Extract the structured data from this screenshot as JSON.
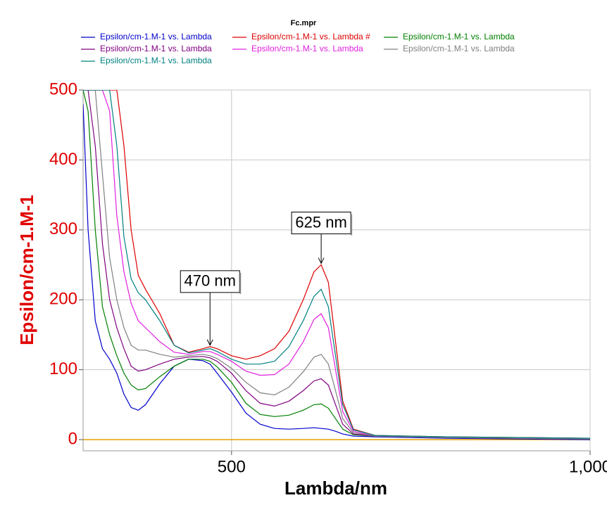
{
  "chart_data": {
    "type": "line",
    "title": "Fc.mpr",
    "x_label": "Lambda/nm",
    "y_label": "Epsilon/cm-1.M-1",
    "xlim": [
      293,
      1000
    ],
    "ylim": [
      -16,
      500
    ],
    "xticks": [
      500,
      {
        "value": 1000,
        "label": "1,000"
      }
    ],
    "yticks": [
      0,
      100,
      200,
      300,
      400,
      500
    ],
    "grid": true,
    "baseline_color": "#e8a000",
    "x": [
      293,
      300,
      310,
      320,
      330,
      340,
      350,
      360,
      370,
      380,
      400,
      420,
      440,
      460,
      470,
      480,
      500,
      520,
      540,
      560,
      580,
      600,
      615,
      625,
      635,
      645,
      655,
      670,
      700,
      750,
      800,
      900,
      1000
    ],
    "series": [
      {
        "name": "Epsilon/cm-1.M-1 vs. Lambda",
        "color": "#0000cc",
        "values": [
          480,
          300,
          170,
          130,
          115,
          95,
          65,
          46,
          42,
          50,
          80,
          105,
          115,
          113,
          108,
          95,
          68,
          38,
          22,
          16,
          15,
          16,
          17,
          16,
          15,
          12,
          8,
          5,
          4,
          3,
          2,
          1,
          0
        ]
      },
      {
        "name": "Epsilon/cm-1.M-1 vs. Lambda #",
        "color": "#dd0000",
        "values": [
          500,
          500,
          500,
          500,
          500,
          500,
          420,
          300,
          235,
          215,
          180,
          135,
          125,
          130,
          133,
          130,
          120,
          115,
          120,
          130,
          155,
          200,
          240,
          250,
          225,
          140,
          55,
          15,
          6,
          5,
          4,
          3,
          2
        ]
      },
      {
        "name": "Epsilon/cm-1.M-1 vs. Lambda",
        "color": "#008000",
        "values": [
          500,
          470,
          300,
          190,
          150,
          120,
          95,
          78,
          71,
          73,
          90,
          105,
          115,
          115,
          112,
          104,
          82,
          52,
          36,
          33,
          35,
          42,
          50,
          51,
          45,
          30,
          15,
          7,
          5,
          4,
          3,
          2,
          1
        ]
      },
      {
        "name": "Epsilon/cm-1.M-1 vs. Lambda",
        "color": "#800080",
        "values": [
          500,
          500,
          420,
          280,
          200,
          160,
          130,
          105,
          98,
          100,
          108,
          115,
          118,
          119,
          117,
          112,
          95,
          70,
          52,
          48,
          55,
          70,
          84,
          87,
          78,
          50,
          22,
          8,
          5,
          4,
          3,
          2,
          1
        ]
      },
      {
        "name": "Epsilon/cm-1.M-1 vs. Lambda",
        "color": "#e020e0",
        "values": [
          500,
          500,
          500,
          500,
          470,
          320,
          240,
          195,
          170,
          160,
          140,
          125,
          122,
          126,
          126,
          122,
          112,
          98,
          92,
          93,
          108,
          140,
          172,
          180,
          160,
          100,
          40,
          12,
          5,
          4,
          3,
          2,
          1
        ]
      },
      {
        "name": "Epsilon/cm-1.M-1 vs. Lambda",
        "color": "#808080",
        "values": [
          500,
          500,
          500,
          380,
          260,
          200,
          160,
          135,
          128,
          128,
          122,
          118,
          120,
          122,
          120,
          116,
          102,
          82,
          67,
          64,
          75,
          97,
          118,
          122,
          108,
          70,
          30,
          10,
          5,
          4,
          3,
          2,
          1
        ]
      },
      {
        "name": "Epsilon/cm-1.M-1 vs. Lambda",
        "color": "#008080",
        "values": [
          500,
          500,
          500,
          500,
          500,
          420,
          290,
          230,
          210,
          200,
          170,
          135,
          124,
          128,
          130,
          126,
          115,
          108,
          108,
          112,
          133,
          170,
          205,
          215,
          190,
          120,
          50,
          14,
          6,
          5,
          4,
          3,
          2
        ]
      }
    ],
    "annotations": [
      {
        "text": "470 nm",
        "x": 470,
        "y": 133
      },
      {
        "text": "625 nm",
        "x": 625,
        "y": 250
      }
    ]
  }
}
